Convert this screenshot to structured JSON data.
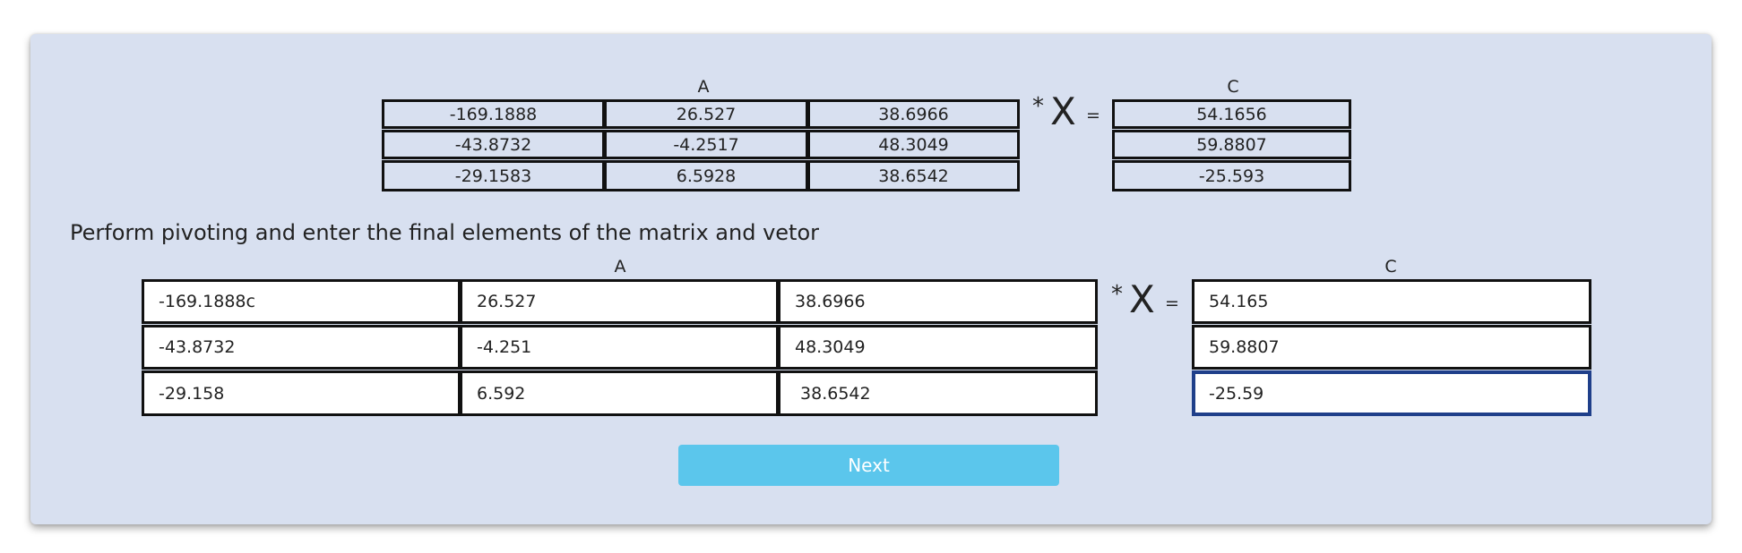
{
  "top": {
    "a_label": "A",
    "c_label": "C",
    "operator_star": "*",
    "operator_x": "X",
    "operator_eq": "=",
    "matrix_a": [
      [
        "-169.1888",
        "26.527",
        "38.6966"
      ],
      [
        "-43.8732",
        "-4.2517",
        "48.3049"
      ],
      [
        "-29.1583",
        "6.5928",
        "38.6542"
      ]
    ],
    "vector_c": [
      "54.1656",
      "59.8807",
      "-25.593"
    ]
  },
  "instruction": "Perform pivoting and enter the final elements of the matrix and vetor",
  "bottom": {
    "a_label": "A",
    "c_label": "C",
    "operator_star": "*",
    "operator_x": "X",
    "operator_eq": "=",
    "matrix_a_inputs": [
      [
        "-169.1888c",
        "26.527",
        "38.6966"
      ],
      [
        "-43.8732",
        "-4.251",
        "48.3049"
      ],
      [
        "-29.158",
        "6.592",
        " 38.6542"
      ]
    ],
    "vector_c_inputs": [
      "54.165",
      "59.8807",
      "-25.59"
    ]
  },
  "next_button": "Next",
  "colors": {
    "card_background": "#d8e0f0",
    "button_background": "#5bc6ec",
    "button_text": "#ffffff",
    "focus_border": "#1f3f8a"
  }
}
